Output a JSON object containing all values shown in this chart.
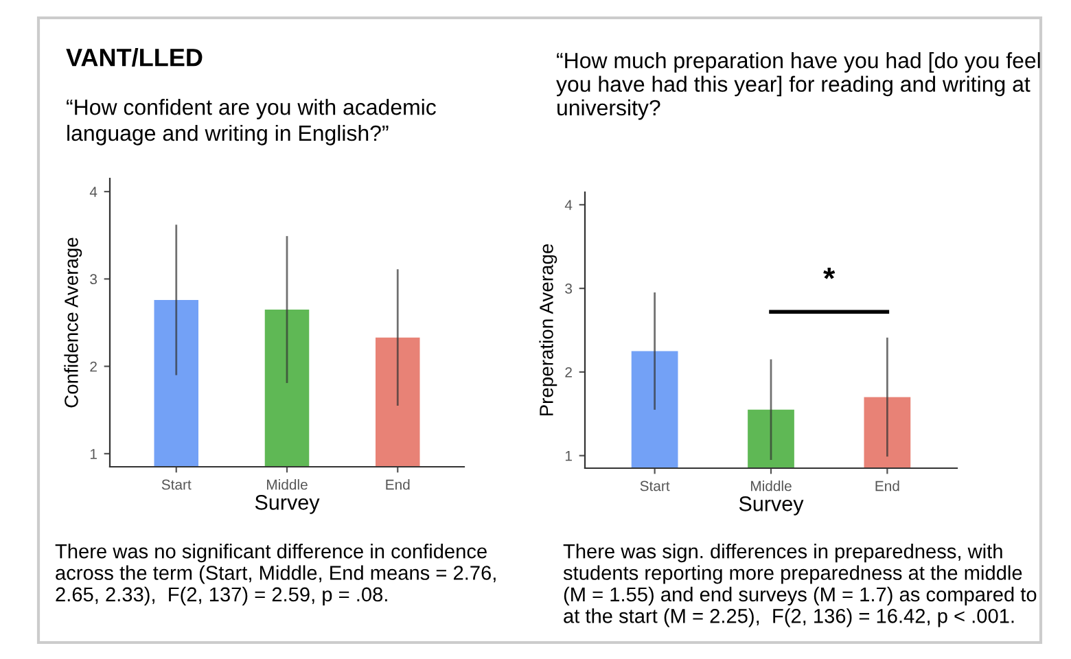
{
  "chart_data": [
    {
      "type": "bar",
      "title": "VANT/LLED",
      "subtitle": "“How confident are you with academic\nlanguage and writing in English?”",
      "xlabel": "Survey",
      "ylabel": "Confidence Average",
      "categories": [
        "Start",
        "Middle",
        "End"
      ],
      "values": [
        2.76,
        2.65,
        2.33
      ],
      "colors": [
        "#6b9cf6",
        "#56b44c",
        "#e77b6f"
      ],
      "errors": [
        0.85,
        0.83,
        0.77
      ],
      "ylim": [
        0.85,
        4.15
      ],
      "yticks": [
        1,
        2,
        3,
        4
      ],
      "grid": false,
      "legend": false,
      "annotations": [
        "There was no significant difference in confidence\nacross the term (Start, Middle, End means = 2.76,\n2.65, 2.33),  F(2, 137) = 2.59, p = .08."
      ]
    },
    {
      "type": "bar",
      "title": "“How much preparation have you had [do you feel\nyou have had this year] for reading and writing at\nuniversity?",
      "xlabel": "Survey",
      "ylabel": "Preperation Average",
      "categories": [
        "Start",
        "Middle",
        "End"
      ],
      "values": [
        2.25,
        1.55,
        1.7
      ],
      "colors": [
        "#6b9cf6",
        "#56b44c",
        "#e77b6f"
      ],
      "errors": [
        0.69,
        0.59,
        0.7
      ],
      "ylim": [
        0.85,
        4.15
      ],
      "yticks": [
        1,
        2,
        3,
        4
      ],
      "grid": false,
      "legend": false,
      "annotations": [
        "*",
        "There was sign. differences in preparedness, with\nstudents reporting more preparedness at the middle\n(M = 1.55) and end surveys (M = 1.7) as compared to\nat the start (M = 2.25),  F(2, 136) = 16.42, p < .001."
      ]
    }
  ]
}
